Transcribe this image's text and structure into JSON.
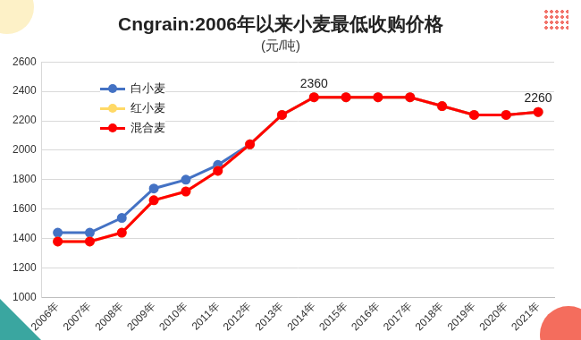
{
  "chart_data": {
    "type": "line",
    "title": "Cngrain:2006年以来小麦最低收购价格",
    "subtitle": "(元/吨)",
    "categories": [
      "2006年",
      "2007年",
      "2008年",
      "2009年",
      "2010年",
      "2011年",
      "2012年",
      "2013年",
      "2014年",
      "2015年",
      "2016年",
      "2017年",
      "2018年",
      "2019年",
      "2020年",
      "2021年"
    ],
    "series": [
      {
        "name": "白小麦",
        "color": "#4472c4",
        "marker": "circle",
        "values": [
          1440,
          1440,
          1540,
          1740,
          1800,
          1900,
          2040,
          2240,
          2360,
          2360,
          2360,
          2360,
          2300,
          2240,
          2240,
          2260
        ]
      },
      {
        "name": "红小麦",
        "color": "#ffd966",
        "marker": "circle",
        "values": [
          1380,
          1380,
          1440,
          1660,
          1720,
          1860,
          2040,
          2240,
          2360,
          2360,
          2360,
          2360,
          2300,
          2240,
          2240,
          2260
        ]
      },
      {
        "name": "混合麦",
        "color": "#ff0000",
        "marker": "circle",
        "values": [
          1380,
          1380,
          1440,
          1660,
          1720,
          1860,
          2040,
          2240,
          2360,
          2360,
          2360,
          2360,
          2300,
          2240,
          2240,
          2260
        ]
      }
    ],
    "annotations": [
      {
        "text": "2360",
        "x": "2014年",
        "y": 2360
      },
      {
        "text": "2260",
        "x": "2021年",
        "y": 2260
      }
    ],
    "ylim": [
      1000,
      2600
    ],
    "yticks": [
      1000,
      1200,
      1400,
      1600,
      1800,
      2000,
      2200,
      2400,
      2600
    ],
    "grid": "y",
    "legend": "upper left"
  }
}
